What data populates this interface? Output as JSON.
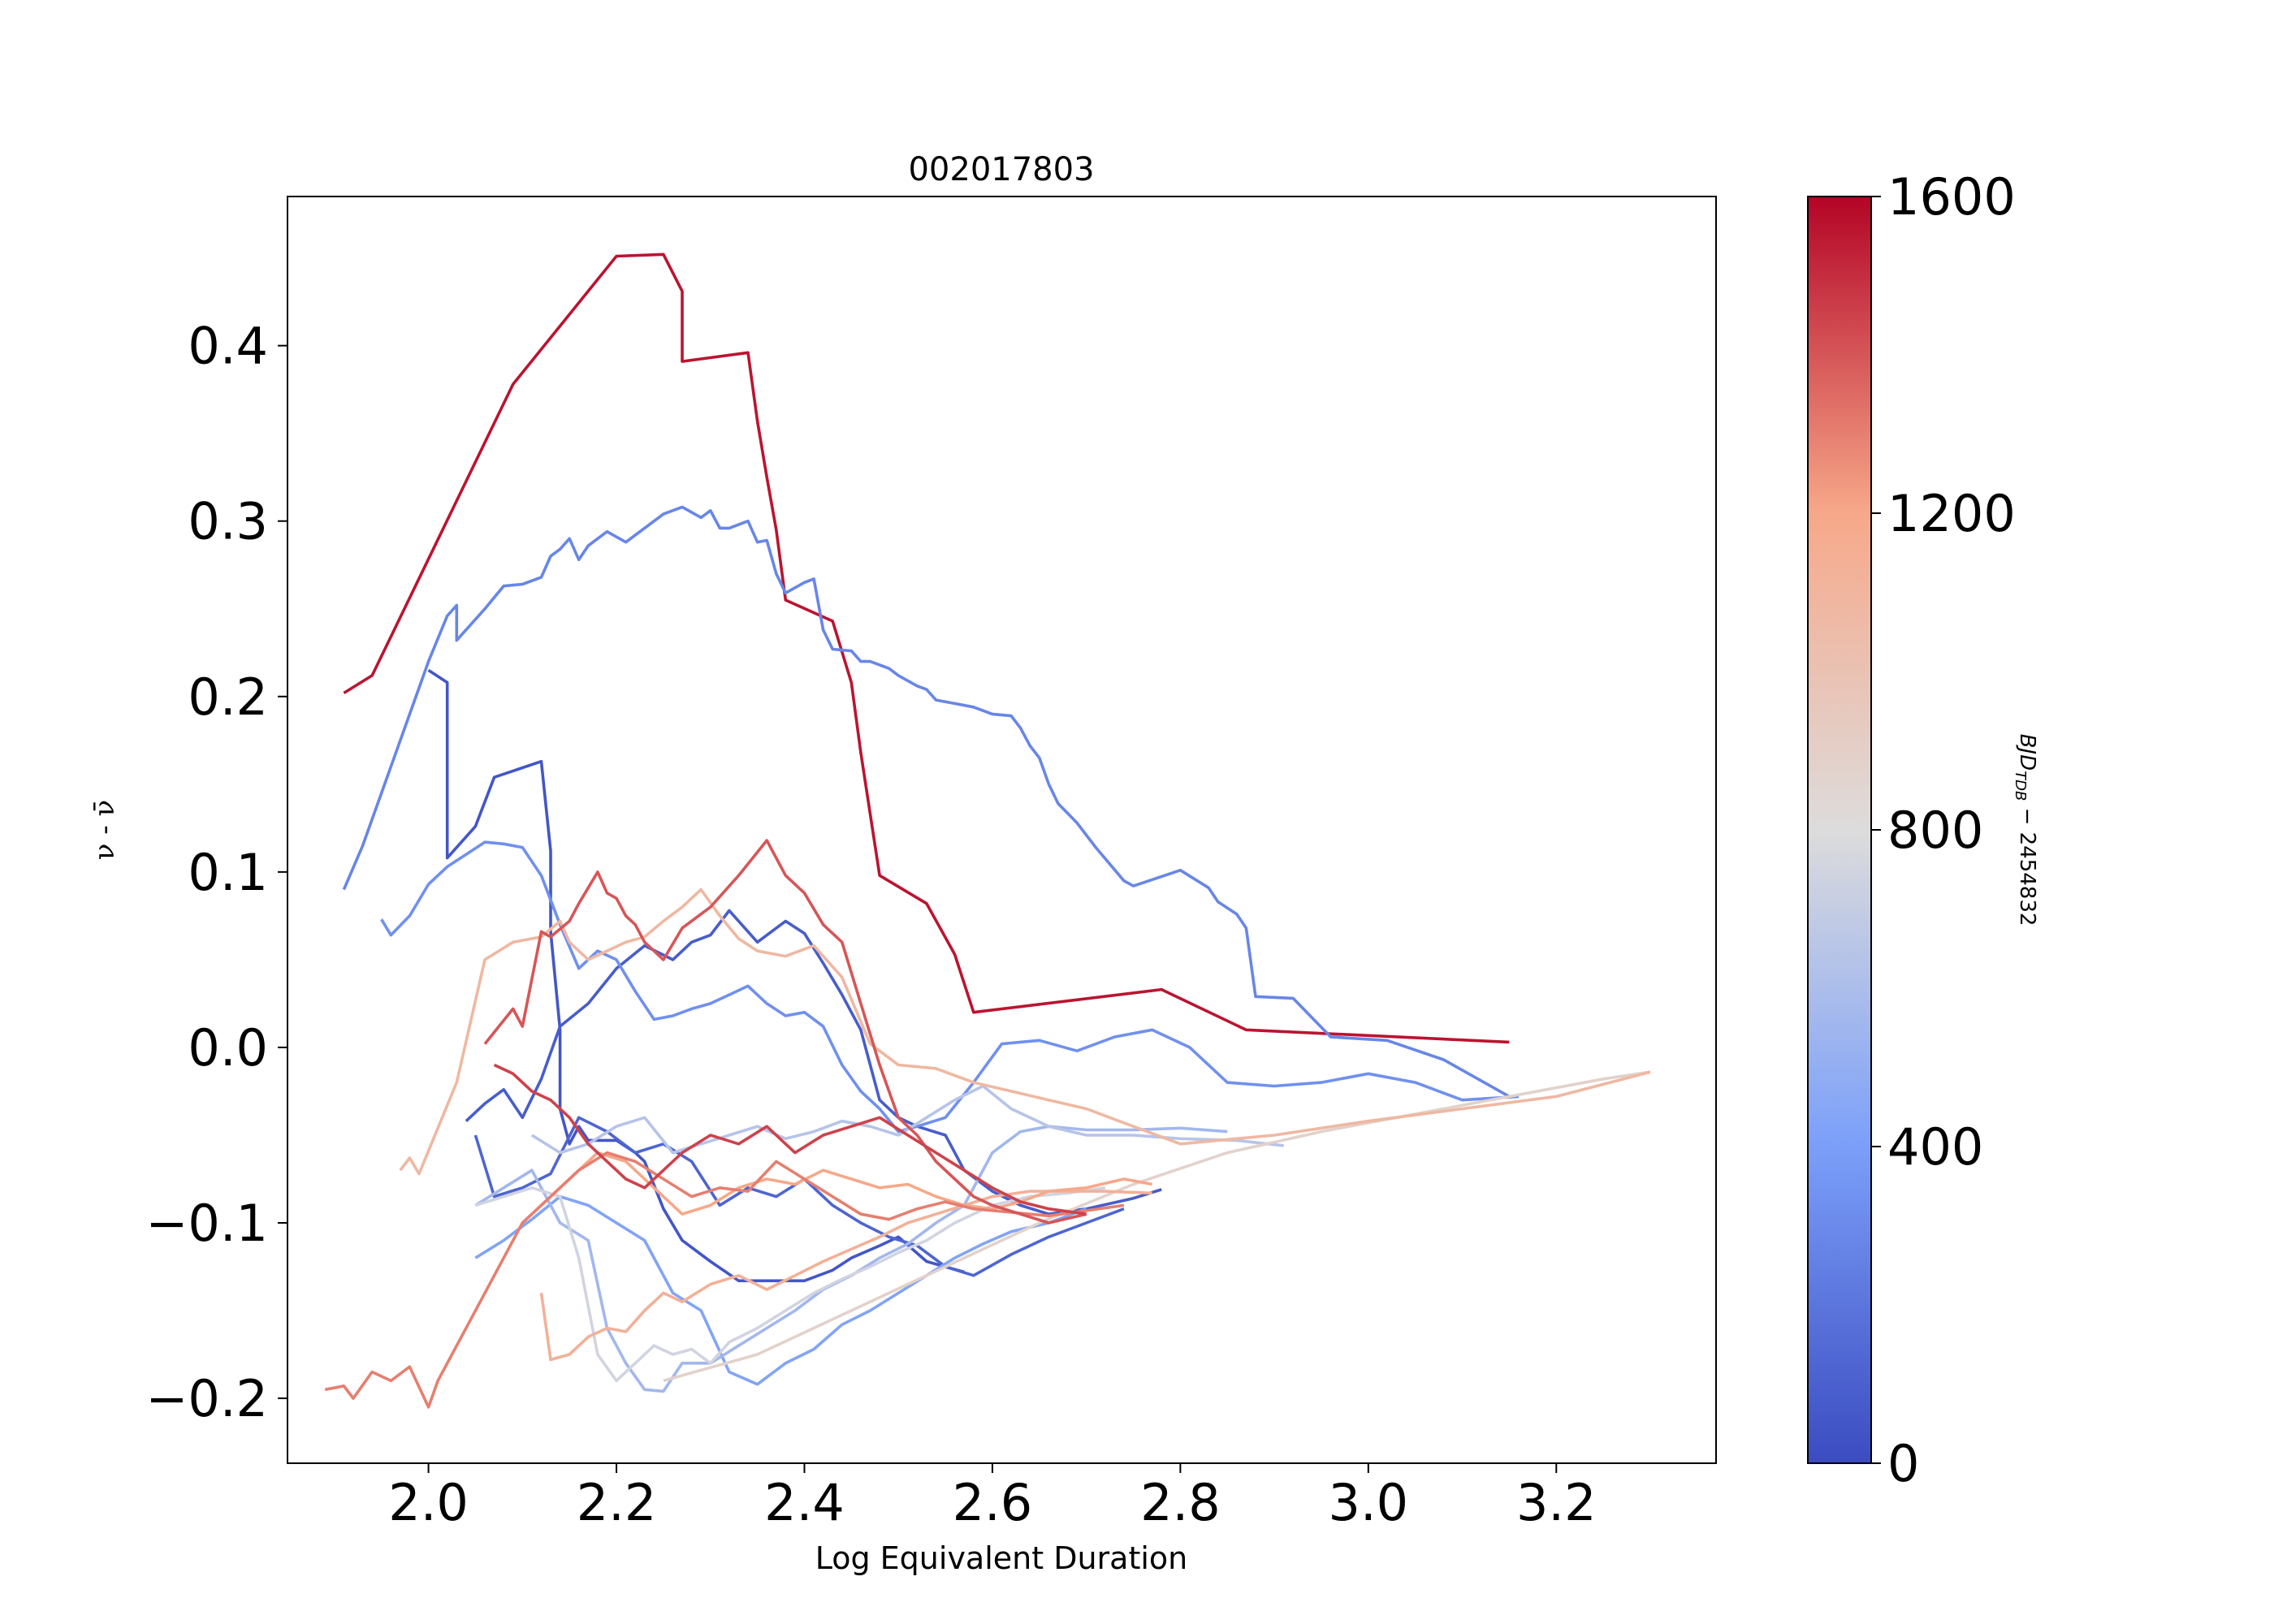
{
  "chart_data": {
    "type": "line",
    "title": "002017803",
    "xlabel": "Log Equivalent Duration",
    "ylabel": "ν - ν̄",
    "xlim": [
      1.85,
      3.37
    ],
    "ylim": [
      -0.237,
      0.485
    ],
    "x_ticks": [
      2.0,
      2.2,
      2.4,
      2.6,
      2.8,
      3.0,
      3.2
    ],
    "x_tick_labels": [
      "2.0",
      "2.2",
      "2.4",
      "2.6",
      "2.8",
      "3.0",
      "3.2"
    ],
    "y_ticks": [
      -0.2,
      -0.1,
      0.0,
      0.1,
      0.2,
      0.3,
      0.4
    ],
    "y_tick_labels": [
      "−0.2",
      "−0.1",
      "0.0",
      "0.1",
      "0.2",
      "0.3",
      "0.4"
    ],
    "grid": false,
    "colorbar": {
      "label": "BJD_TDB − 2454832",
      "label_main": "BJD",
      "label_sub": "TDB",
      "label_tail": " − 2454832",
      "min": 0,
      "max": 1600,
      "ticks": [
        0,
        400,
        800,
        1200,
        1600
      ],
      "tick_labels": [
        "0",
        "400",
        "800",
        "1200",
        "1600"
      ],
      "colormap": "coolwarm"
    },
    "series": [
      {
        "color_value": 1560,
        "x": [
          1.91,
          1.94,
          2.09,
          2.2,
          2.25,
          2.27,
          2.27,
          2.34,
          2.35,
          2.36,
          2.37,
          2.38,
          2.43,
          2.45,
          2.46,
          2.48,
          2.53,
          2.56,
          2.58,
          2.78,
          2.87,
          3.15
        ],
        "y": [
          0.202,
          0.212,
          0.378,
          0.451,
          0.452,
          0.431,
          0.391,
          0.396,
          0.357,
          0.325,
          0.295,
          0.255,
          0.243,
          0.208,
          0.168,
          0.098,
          0.082,
          0.053,
          0.02,
          0.033,
          0.01,
          0.003
        ]
      },
      {
        "color_value": 280,
        "x": [
          1.91,
          1.93,
          2.0,
          2.02,
          2.03,
          2.03,
          2.06,
          2.08,
          2.1,
          2.12,
          2.13,
          2.14,
          2.15,
          2.16,
          2.17,
          2.18,
          2.19,
          2.21,
          2.22,
          2.25,
          2.27,
          2.29,
          2.3,
          2.31,
          2.32,
          2.34,
          2.35,
          2.36,
          2.37,
          2.38,
          2.39,
          2.4,
          2.41,
          2.42,
          2.43,
          2.45,
          2.46,
          2.47,
          2.49,
          2.5,
          2.52,
          2.53,
          2.54,
          2.56,
          2.58,
          2.6,
          2.62,
          2.63,
          2.64,
          2.65,
          2.66,
          2.67,
          2.69,
          2.71,
          2.74,
          2.75,
          2.8,
          2.83,
          2.84,
          2.86,
          2.87,
          2.88,
          2.92,
          2.96,
          3.02,
          3.08,
          3.15
        ],
        "y": [
          0.09,
          0.115,
          0.22,
          0.246,
          0.252,
          0.232,
          0.25,
          0.263,
          0.264,
          0.268,
          0.28,
          0.284,
          0.29,
          0.278,
          0.286,
          0.29,
          0.294,
          0.288,
          0.292,
          0.304,
          0.308,
          0.302,
          0.306,
          0.296,
          0.296,
          0.3,
          0.288,
          0.289,
          0.27,
          0.259,
          0.262,
          0.265,
          0.267,
          0.238,
          0.227,
          0.226,
          0.22,
          0.22,
          0.216,
          0.212,
          0.206,
          0.204,
          0.198,
          0.196,
          0.194,
          0.19,
          0.189,
          0.182,
          0.172,
          0.165,
          0.15,
          0.139,
          0.128,
          0.114,
          0.095,
          0.092,
          0.101,
          0.091,
          0.083,
          0.076,
          0.068,
          0.029,
          0.028,
          0.006,
          0.004,
          -0.007,
          -0.028
        ]
      },
      {
        "color_value": 50,
        "x": [
          2.0,
          2.02,
          2.02,
          2.05,
          2.07,
          2.12,
          2.13,
          2.13,
          2.14,
          2.14,
          2.15,
          2.16,
          2.17,
          2.2,
          2.22,
          2.23,
          2.25,
          2.27,
          2.3,
          2.33,
          2.36,
          2.4,
          2.43,
          2.45,
          2.48,
          2.5,
          2.53,
          2.57
        ],
        "y": [
          0.215,
          0.208,
          0.108,
          0.126,
          0.154,
          0.163,
          0.112,
          0.066,
          0.01,
          -0.035,
          -0.055,
          -0.045,
          -0.053,
          -0.053,
          -0.06,
          -0.065,
          -0.092,
          -0.11,
          -0.122,
          -0.133,
          -0.133,
          -0.133,
          -0.127,
          -0.12,
          -0.113,
          -0.108,
          -0.122,
          -0.128
        ]
      },
      {
        "color_value": 80,
        "x": [
          2.04,
          2.06,
          2.08,
          2.1,
          2.12,
          2.14,
          2.17,
          2.2,
          2.23,
          2.26,
          2.28,
          2.3,
          2.32,
          2.35,
          2.38,
          2.4,
          2.42,
          2.44,
          2.46,
          2.48,
          2.5,
          2.52,
          2.55,
          2.57,
          2.6,
          2.63,
          2.66,
          2.7,
          2.75,
          2.78
        ],
        "y": [
          -0.042,
          -0.032,
          -0.024,
          -0.04,
          -0.018,
          0.012,
          0.025,
          0.045,
          0.058,
          0.05,
          0.06,
          0.064,
          0.078,
          0.06,
          0.072,
          0.065,
          0.048,
          0.03,
          0.01,
          -0.03,
          -0.04,
          -0.045,
          -0.05,
          -0.07,
          -0.082,
          -0.09,
          -0.095,
          -0.092,
          -0.086,
          -0.081
        ]
      },
      {
        "color_value": 120,
        "x": [
          2.05,
          2.07,
          2.1,
          2.13,
          2.16,
          2.19,
          2.22,
          2.25,
          2.28,
          2.31,
          2.34,
          2.37,
          2.4,
          2.43,
          2.46,
          2.49,
          2.52,
          2.55,
          2.58,
          2.62,
          2.66,
          2.7,
          2.74
        ],
        "y": [
          -0.05,
          -0.085,
          -0.08,
          -0.072,
          -0.04,
          -0.048,
          -0.06,
          -0.055,
          -0.065,
          -0.09,
          -0.08,
          -0.085,
          -0.075,
          -0.09,
          -0.1,
          -0.108,
          -0.113,
          -0.125,
          -0.13,
          -0.118,
          -0.108,
          -0.1,
          -0.092
        ]
      },
      {
        "color_value": 330,
        "x": [
          1.95,
          1.96,
          1.98,
          2.0,
          2.02,
          2.04,
          2.06,
          2.08,
          2.1,
          2.12,
          2.14,
          2.16,
          2.18,
          2.2,
          2.22,
          2.24,
          2.26,
          2.28,
          2.3,
          2.32,
          2.34,
          2.36,
          2.38,
          2.4,
          2.42,
          2.44,
          2.46,
          2.48,
          2.5,
          2.52,
          2.55,
          2.58,
          2.61,
          2.65,
          2.69,
          2.73,
          2.77,
          2.81,
          2.85,
          2.9,
          2.95,
          3.0,
          3.05,
          3.1,
          3.16
        ],
        "y": [
          0.073,
          0.064,
          0.075,
          0.093,
          0.103,
          0.11,
          0.117,
          0.116,
          0.114,
          0.098,
          0.07,
          0.045,
          0.055,
          0.05,
          0.032,
          0.016,
          0.018,
          0.022,
          0.025,
          0.03,
          0.035,
          0.025,
          0.018,
          0.02,
          0.012,
          -0.01,
          -0.025,
          -0.035,
          -0.048,
          -0.045,
          -0.04,
          -0.02,
          0.002,
          0.004,
          -0.002,
          0.006,
          0.01,
          0.0,
          -0.02,
          -0.022,
          -0.02,
          -0.015,
          -0.02,
          -0.03,
          -0.028
        ]
      },
      {
        "color_value": 430,
        "x": [
          2.05,
          2.08,
          2.11,
          2.14,
          2.17,
          2.2,
          2.23,
          2.26,
          2.29,
          2.32,
          2.35,
          2.38,
          2.41,
          2.44,
          2.47,
          2.5,
          2.53,
          2.56,
          2.59,
          2.62,
          2.66,
          2.7
        ],
        "y": [
          -0.12,
          -0.11,
          -0.098,
          -0.085,
          -0.09,
          -0.1,
          -0.11,
          -0.14,
          -0.15,
          -0.185,
          -0.192,
          -0.18,
          -0.172,
          -0.158,
          -0.15,
          -0.14,
          -0.13,
          -0.12,
          -0.112,
          -0.105,
          -0.1,
          -0.092
        ]
      },
      {
        "color_value": 560,
        "x": [
          2.05,
          2.08,
          2.11,
          2.14,
          2.17,
          2.19,
          2.21,
          2.23,
          2.25,
          2.27,
          2.3,
          2.33,
          2.36,
          2.39,
          2.42,
          2.45,
          2.48,
          2.51,
          2.54,
          2.57,
          2.6,
          2.63,
          2.66,
          2.7,
          2.75,
          2.8,
          2.85
        ],
        "y": [
          -0.09,
          -0.08,
          -0.07,
          -0.1,
          -0.11,
          -0.16,
          -0.18,
          -0.195,
          -0.196,
          -0.18,
          -0.18,
          -0.17,
          -0.16,
          -0.15,
          -0.138,
          -0.13,
          -0.12,
          -0.112,
          -0.1,
          -0.09,
          -0.06,
          -0.048,
          -0.045,
          -0.047,
          -0.047,
          -0.046,
          -0.048
        ]
      },
      {
        "color_value": 640,
        "x": [
          2.11,
          2.14,
          2.17,
          2.2,
          2.23,
          2.26,
          2.29,
          2.32,
          2.35,
          2.38,
          2.41,
          2.44,
          2.47,
          2.5,
          2.53,
          2.56,
          2.59,
          2.62,
          2.66,
          2.7,
          2.75,
          2.8,
          2.86,
          2.91
        ],
        "y": [
          -0.05,
          -0.06,
          -0.055,
          -0.045,
          -0.04,
          -0.06,
          -0.055,
          -0.05,
          -0.045,
          -0.052,
          -0.048,
          -0.042,
          -0.045,
          -0.05,
          -0.04,
          -0.03,
          -0.022,
          -0.035,
          -0.045,
          -0.05,
          -0.05,
          -0.052,
          -0.053,
          -0.056
        ]
      },
      {
        "color_value": 750,
        "x": [
          2.05,
          2.08,
          2.11,
          2.14,
          2.16,
          2.18,
          2.2,
          2.22,
          2.24,
          2.26,
          2.28,
          2.3,
          2.32,
          2.35,
          2.38,
          2.41,
          2.44,
          2.47,
          2.5,
          2.53,
          2.56,
          2.6,
          2.64,
          2.68,
          2.72
        ],
        "y": [
          -0.09,
          -0.085,
          -0.08,
          -0.085,
          -0.12,
          -0.175,
          -0.19,
          -0.18,
          -0.17,
          -0.175,
          -0.172,
          -0.18,
          -0.168,
          -0.16,
          -0.15,
          -0.14,
          -0.132,
          -0.125,
          -0.117,
          -0.11,
          -0.1,
          -0.09,
          -0.085,
          -0.083,
          -0.08
        ]
      },
      {
        "color_value": 880,
        "x": [
          2.25,
          2.35,
          2.45,
          2.55,
          2.65,
          2.75,
          2.85,
          2.95,
          3.05,
          3.15,
          3.25,
          3.3
        ],
        "y": [
          -0.19,
          -0.175,
          -0.15,
          -0.125,
          -0.1,
          -0.078,
          -0.06,
          -0.048,
          -0.038,
          -0.028,
          -0.018,
          -0.014
        ]
      },
      {
        "color_value": 1080,
        "x": [
          1.97,
          1.98,
          1.99,
          2.03,
          2.06,
          2.09,
          2.12,
          2.14,
          2.15,
          2.17,
          2.19,
          2.21,
          2.23,
          2.25,
          2.27,
          2.29,
          2.31,
          2.33,
          2.35,
          2.38,
          2.41,
          2.44,
          2.47,
          2.5,
          2.54,
          2.58,
          2.62,
          2.66,
          2.7,
          2.75,
          2.8,
          2.9,
          3.0,
          3.1,
          3.2,
          3.3
        ],
        "y": [
          -0.07,
          -0.063,
          -0.072,
          -0.02,
          0.05,
          0.06,
          0.063,
          0.072,
          0.06,
          0.05,
          0.055,
          0.06,
          0.063,
          0.072,
          0.08,
          0.09,
          0.075,
          0.062,
          0.055,
          0.052,
          0.058,
          0.04,
          0.002,
          -0.01,
          -0.012,
          -0.02,
          -0.025,
          -0.03,
          -0.035,
          -0.045,
          -0.055,
          -0.05,
          -0.042,
          -0.035,
          -0.028,
          -0.014
        ]
      },
      {
        "color_value": 1130,
        "x": [
          2.12,
          2.13,
          2.15,
          2.17,
          2.19,
          2.21,
          2.23,
          2.25,
          2.27,
          2.3,
          2.33,
          2.36,
          2.39,
          2.42,
          2.45,
          2.48,
          2.51,
          2.54,
          2.57,
          2.6,
          2.64,
          2.68,
          2.72,
          2.77
        ],
        "y": [
          -0.14,
          -0.178,
          -0.175,
          -0.165,
          -0.16,
          -0.162,
          -0.15,
          -0.14,
          -0.145,
          -0.135,
          -0.13,
          -0.138,
          -0.13,
          -0.122,
          -0.115,
          -0.108,
          -0.1,
          -0.095,
          -0.09,
          -0.085,
          -0.082,
          -0.082,
          -0.082,
          -0.083
        ]
      },
      {
        "color_value": 1200,
        "x": [
          2.12,
          2.15,
          2.18,
          2.21,
          2.24,
          2.27,
          2.3,
          2.33,
          2.36,
          2.39,
          2.42,
          2.45,
          2.48,
          2.51,
          2.54,
          2.57,
          2.6,
          2.63,
          2.66,
          2.7,
          2.74,
          2.77
        ],
        "y": [
          -0.09,
          -0.075,
          -0.06,
          -0.065,
          -0.08,
          -0.095,
          -0.09,
          -0.08,
          -0.075,
          -0.078,
          -0.07,
          -0.075,
          -0.08,
          -0.078,
          -0.085,
          -0.09,
          -0.092,
          -0.088,
          -0.082,
          -0.08,
          -0.075,
          -0.078
        ]
      },
      {
        "color_value": 1300,
        "x": [
          1.89,
          1.91,
          1.92,
          1.94,
          1.96,
          1.98,
          2.0,
          2.01,
          2.04,
          2.07,
          2.1,
          2.13,
          2.16,
          2.19,
          2.22,
          2.25,
          2.28,
          2.31,
          2.34,
          2.37,
          2.4,
          2.43,
          2.46,
          2.49,
          2.52,
          2.55,
          2.58,
          2.62,
          2.66,
          2.7,
          2.74
        ],
        "y": [
          -0.195,
          -0.193,
          -0.2,
          -0.185,
          -0.19,
          -0.182,
          -0.205,
          -0.19,
          -0.16,
          -0.13,
          -0.1,
          -0.085,
          -0.07,
          -0.06,
          -0.065,
          -0.075,
          -0.085,
          -0.08,
          -0.082,
          -0.065,
          -0.075,
          -0.085,
          -0.095,
          -0.098,
          -0.092,
          -0.088,
          -0.092,
          -0.094,
          -0.096,
          -0.093,
          -0.09
        ]
      },
      {
        "color_value": 1400,
        "x": [
          2.06,
          2.09,
          2.1,
          2.12,
          2.13,
          2.15,
          2.16,
          2.18,
          2.19,
          2.2,
          2.21,
          2.22,
          2.23,
          2.25,
          2.27,
          2.3,
          2.33,
          2.36,
          2.38,
          2.4,
          2.42,
          2.44,
          2.46,
          2.48,
          2.5,
          2.52,
          2.54,
          2.56,
          2.58,
          2.6,
          2.63,
          2.66,
          2.7
        ],
        "y": [
          0.002,
          0.022,
          0.012,
          0.066,
          0.063,
          0.072,
          0.082,
          0.1,
          0.088,
          0.085,
          0.075,
          0.07,
          0.06,
          0.05,
          0.068,
          0.08,
          0.098,
          0.118,
          0.098,
          0.088,
          0.07,
          0.06,
          0.025,
          -0.01,
          -0.04,
          -0.05,
          -0.065,
          -0.075,
          -0.085,
          -0.09,
          -0.095,
          -0.1,
          -0.095
        ]
      },
      {
        "color_value": 1450,
        "x": [
          2.07,
          2.09,
          2.11,
          2.13,
          2.15,
          2.17,
          2.19,
          2.21,
          2.23,
          2.25,
          2.27,
          2.3,
          2.33,
          2.36,
          2.39,
          2.42,
          2.45,
          2.48,
          2.51,
          2.54,
          2.57,
          2.6,
          2.63,
          2.66,
          2.7
        ],
        "y": [
          -0.01,
          -0.015,
          -0.025,
          -0.03,
          -0.04,
          -0.055,
          -0.065,
          -0.075,
          -0.08,
          -0.07,
          -0.06,
          -0.05,
          -0.055,
          -0.045,
          -0.06,
          -0.05,
          -0.045,
          -0.04,
          -0.05,
          -0.06,
          -0.07,
          -0.08,
          -0.088,
          -0.092,
          -0.095
        ]
      }
    ]
  }
}
